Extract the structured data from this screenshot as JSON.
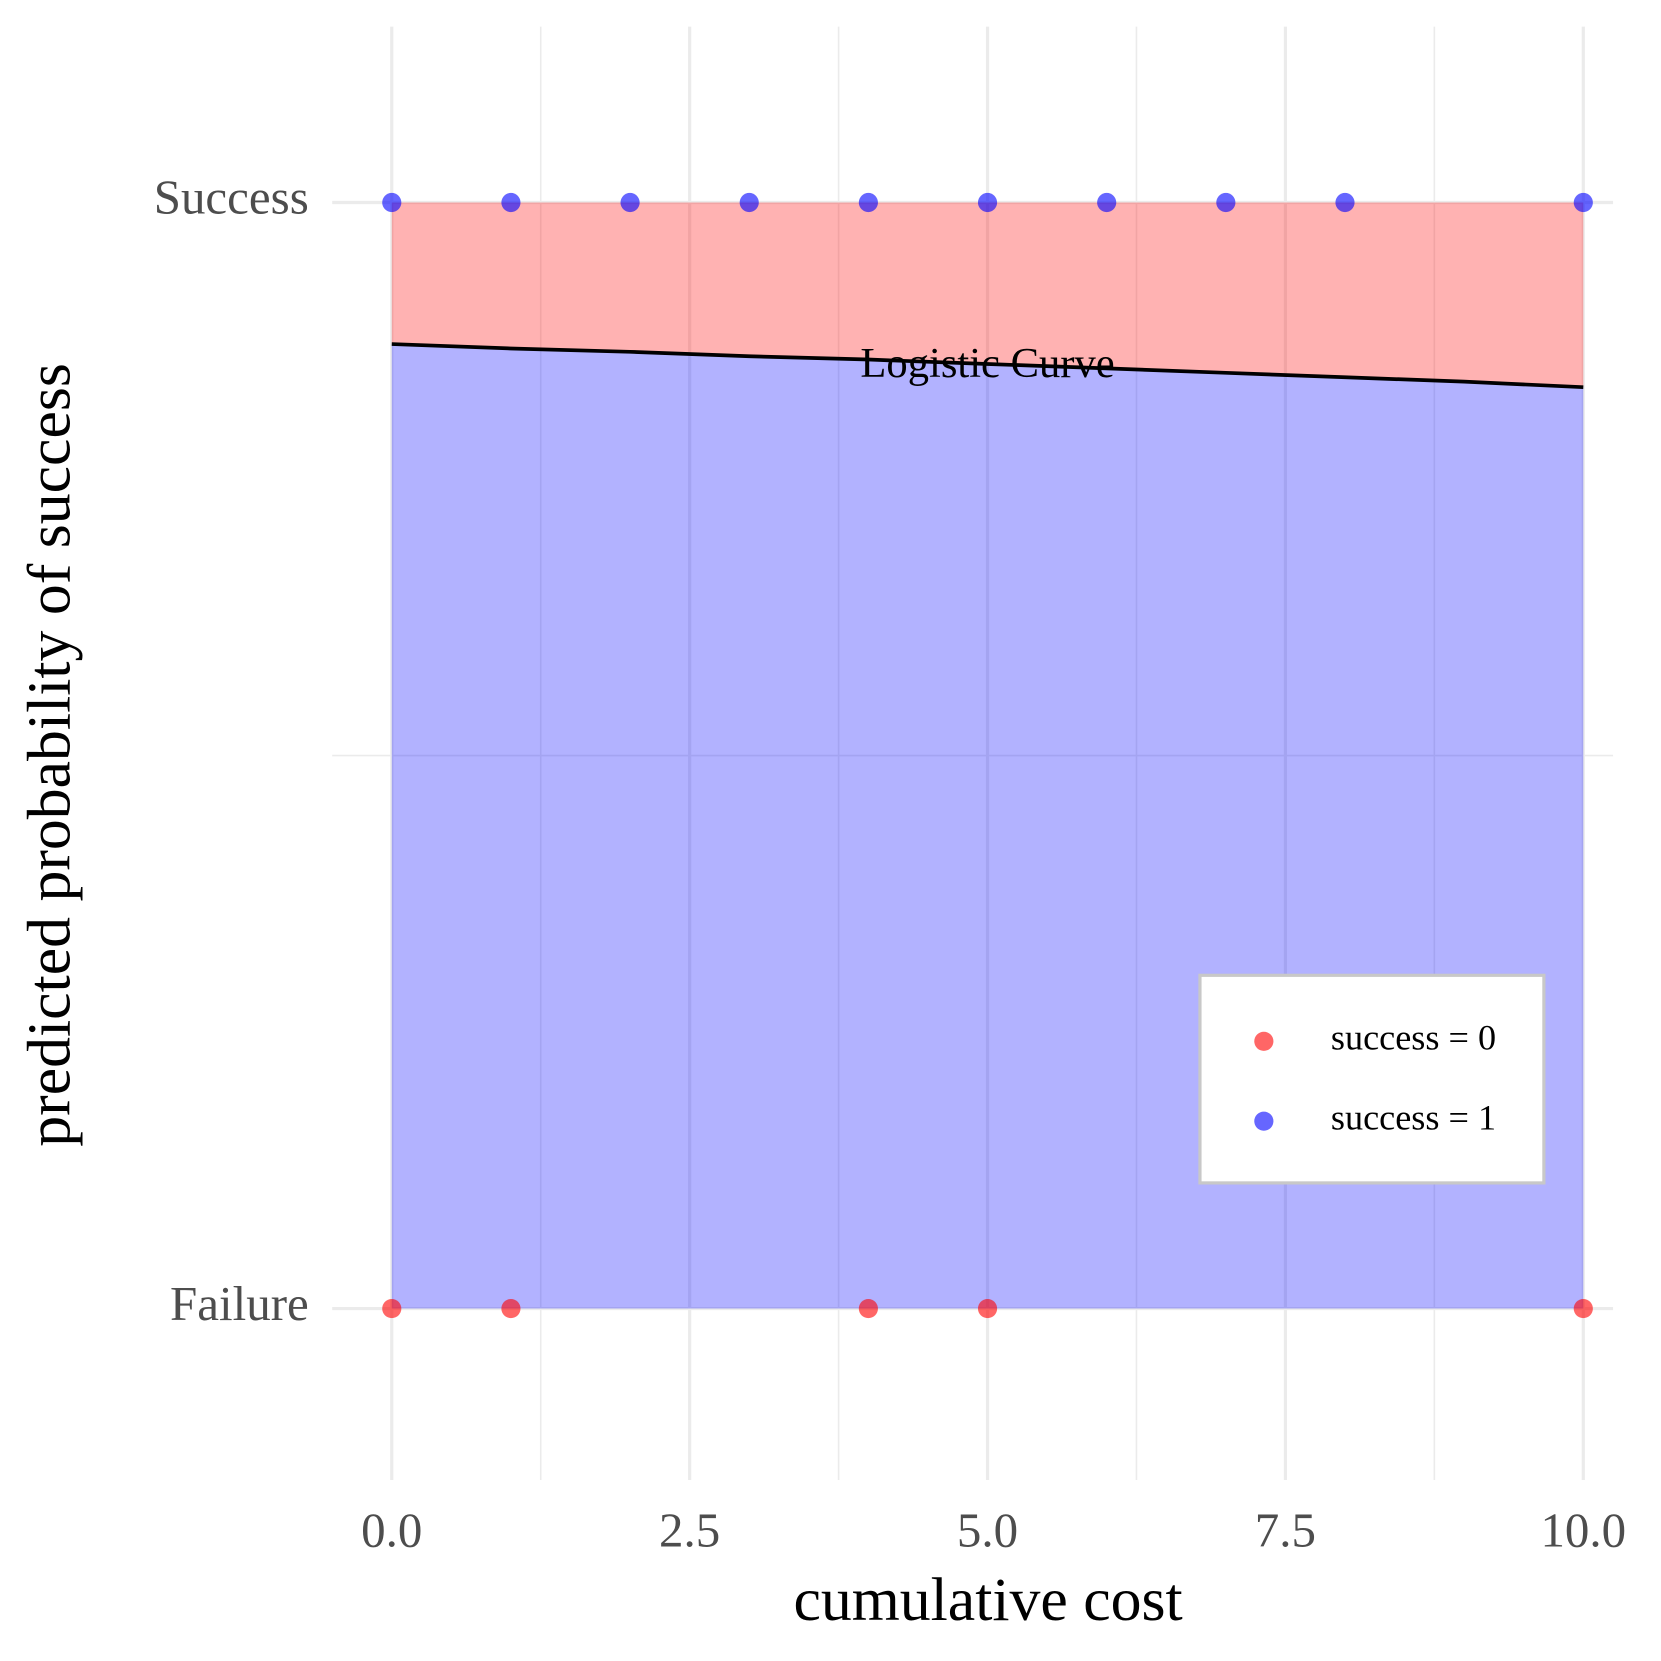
{
  "chart_data": {
    "type": "scatter",
    "x_label": "cumulative cost",
    "y_label": "predicted probability of success",
    "xlim": [
      -0.5,
      10.25
    ],
    "ylim": [
      -0.155,
      1.159
    ],
    "xticks": [
      {
        "value": 0,
        "label": "0.0"
      },
      2.5,
      {
        "value": 5,
        "label": "5.0"
      },
      7.5,
      {
        "value": 10,
        "label": "10.0"
      }
    ],
    "xminor_ticks": [
      1.25,
      3.75,
      6.25,
      8.75
    ],
    "yticks": [
      {
        "value": 0,
        "label": "Failure"
      },
      {
        "value": 1,
        "label": "Success"
      }
    ],
    "yminor_ticks": [
      0.5
    ],
    "grid": true,
    "legend": "bottom-right",
    "series": [
      {
        "name": "success = 0",
        "color": "#ff0000",
        "x": [
          0,
          1,
          4,
          5,
          10
        ],
        "values": [
          0,
          0,
          0,
          0,
          0
        ]
      },
      {
        "name": "success = 1",
        "color": "#0000ff",
        "x": [
          0,
          1,
          2,
          3,
          4,
          5,
          6,
          7,
          8,
          10
        ],
        "values": [
          1,
          1,
          1,
          1,
          1,
          1,
          1,
          1,
          1,
          1
        ]
      }
    ],
    "curve": {
      "color": "#000000",
      "x": [
        0,
        1,
        2,
        3,
        4,
        5,
        6,
        7,
        8,
        9,
        10
      ],
      "values": [
        0.872,
        0.868,
        0.865,
        0.861,
        0.858,
        0.854,
        0.85,
        0.846,
        0.842,
        0.838,
        0.833
      ]
    },
    "fills": [
      "#ff0000",
      "#0000ff"
    ],
    "annotation": {
      "text": "Logistic Curve",
      "x": 5,
      "y": 0.851
    }
  }
}
